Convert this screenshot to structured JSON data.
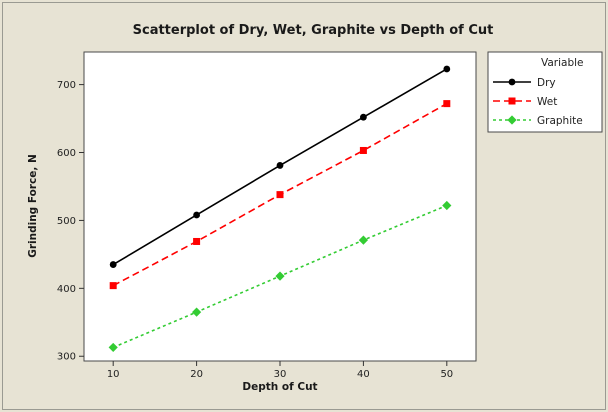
{
  "chart_data": {
    "type": "scatter",
    "title": "Scatterplot of Dry, Wet, Graphite vs Depth of Cut",
    "xlabel": "Depth of Cut",
    "ylabel": "Grinding Force, N",
    "x": [
      10,
      20,
      30,
      40,
      50
    ],
    "x_ticks": [
      10,
      20,
      30,
      40,
      50
    ],
    "y_ticks": [
      300,
      400,
      500,
      600,
      700
    ],
    "xlim": [
      6.5,
      53.5
    ],
    "ylim": [
      293,
      748
    ],
    "grid": false,
    "legend": {
      "title": "Variable",
      "placement": "top-right, outside plot"
    },
    "series": [
      {
        "name": "Dry",
        "values": [
          435,
          508,
          581,
          652,
          723
        ],
        "color": "#000000",
        "marker": "circle",
        "line": "solid"
      },
      {
        "name": "Wet",
        "values": [
          404,
          469,
          538,
          603,
          672
        ],
        "color": "#ff0000",
        "marker": "square",
        "line": "dashed"
      },
      {
        "name": "Graphite",
        "values": [
          313,
          365,
          418,
          471,
          522
        ],
        "color": "#33cc33",
        "marker": "diamond",
        "line": "dotted"
      }
    ],
    "background": {
      "outer": "#e7e3d4",
      "plot": "#ffffff"
    }
  }
}
